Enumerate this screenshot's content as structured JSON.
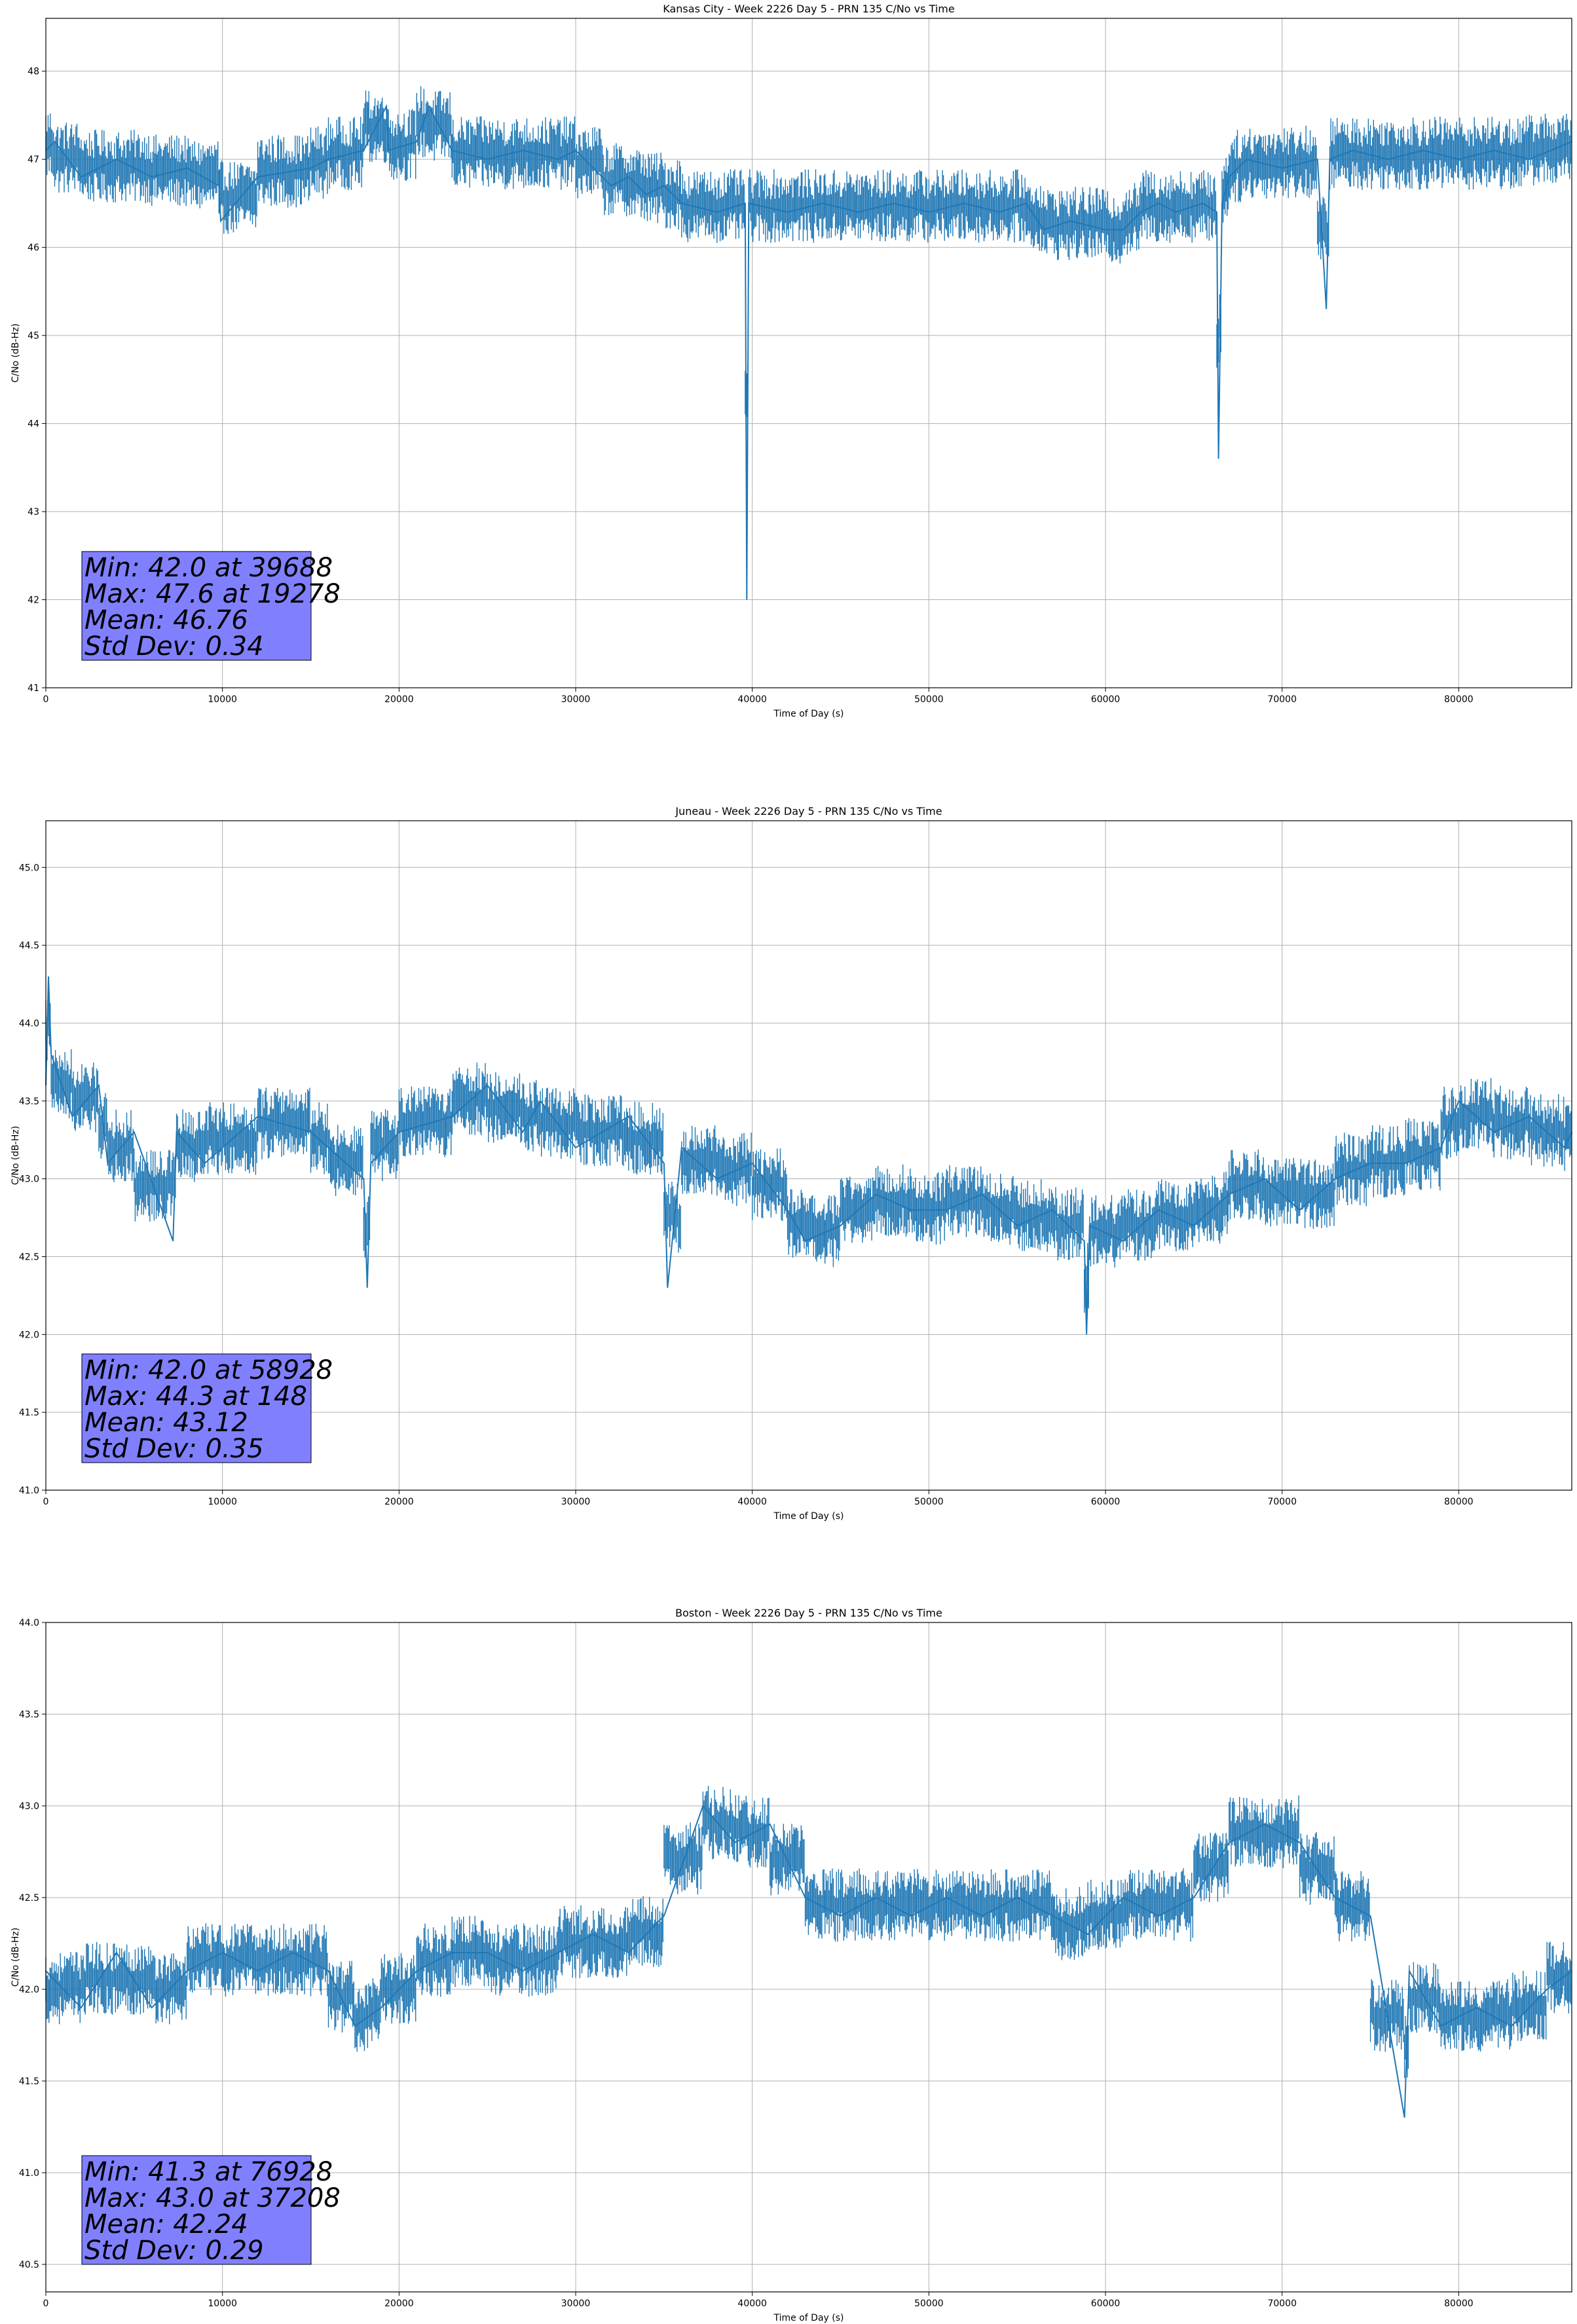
{
  "chart_data": [
    {
      "type": "line",
      "title": "Kansas City - Week 2226 Day 5 - PRN 135 C/No vs Time",
      "xlabel": "Time of Day (s)",
      "ylabel": "C/No (dB-Hz)",
      "xlim": [
        0,
        86400
      ],
      "ylim": [
        41,
        48.6
      ],
      "xticks": [
        0,
        10000,
        20000,
        30000,
        40000,
        50000,
        60000,
        70000,
        80000
      ],
      "yticks": [
        41,
        42,
        43,
        44,
        45,
        46,
        47,
        48
      ],
      "ytick_labels": [
        "41",
        "42",
        "43",
        "44",
        "45",
        "46",
        "47",
        "48"
      ],
      "grid": true,
      "line_color": "#1f77b4",
      "stats_box_color": "#8080ff",
      "stats": [
        "Min: 42.0 at 39688",
        "Max: 47.6 at 19278",
        "Mean: 46.76",
        "Std Dev: 0.34"
      ],
      "x": [
        0,
        500,
        2000,
        4000,
        6000,
        8000,
        9800,
        9900,
        12000,
        15000,
        16000,
        18000,
        19278,
        19400,
        21000,
        21700,
        23000,
        25000,
        27000,
        29000,
        30000,
        31500,
        32000,
        33000,
        34000,
        35000,
        36000,
        38000,
        39600,
        39688,
        39800,
        42000,
        44000,
        46000,
        48000,
        50000,
        52000,
        54000,
        55500,
        56500,
        58000,
        60000,
        61000,
        62000,
        63000,
        64000,
        65500,
        66300,
        66400,
        66600,
        67000,
        68000,
        70000,
        72000,
        72500,
        72700,
        74000,
        76000,
        78000,
        80000,
        82000,
        84000,
        86400
      ],
      "y": [
        47.1,
        47.2,
        46.8,
        47.0,
        46.8,
        46.9,
        46.7,
        46.3,
        46.8,
        46.9,
        47.0,
        47.1,
        47.6,
        47.1,
        47.2,
        47.6,
        47.1,
        47.0,
        47.1,
        47.0,
        47.1,
        46.8,
        46.7,
        46.8,
        46.6,
        46.7,
        46.5,
        46.4,
        46.5,
        42.0,
        46.5,
        46.4,
        46.5,
        46.4,
        46.5,
        46.4,
        46.5,
        46.4,
        46.5,
        46.2,
        46.3,
        46.2,
        46.2,
        46.4,
        46.5,
        46.4,
        46.5,
        46.4,
        43.6,
        46.5,
        46.8,
        47.0,
        46.9,
        47.0,
        45.3,
        47.0,
        47.1,
        47.0,
        47.1,
        47.0,
        47.1,
        47.0,
        47.2
      ]
    },
    {
      "type": "line",
      "title": "Juneau - Week 2226 Day 5 - PRN 135 C/No vs Time",
      "xlabel": "Time of Day (s)",
      "ylabel": "C/No (dB-Hz)",
      "xlim": [
        0,
        86400
      ],
      "ylim": [
        41,
        45.3
      ],
      "xticks": [
        0,
        10000,
        20000,
        30000,
        40000,
        50000,
        60000,
        70000,
        80000
      ],
      "yticks": [
        41.0,
        41.5,
        42.0,
        42.5,
        43.0,
        43.5,
        44.0,
        44.5,
        45.0
      ],
      "ytick_labels": [
        "41.0",
        "41.5",
        "42.0",
        "42.5",
        "43.0",
        "43.5",
        "44.0",
        "44.5",
        "45.0"
      ],
      "grid": true,
      "line_color": "#1f77b4",
      "stats_box_color": "#8080ff",
      "stats": [
        "Min: 42.0 at 58928",
        "Max: 44.3 at 148",
        "Mean: 43.12",
        "Std Dev: 0.35"
      ],
      "x": [
        0,
        148,
        300,
        1500,
        3000,
        3500,
        5000,
        7200,
        7400,
        9000,
        12000,
        15000,
        16000,
        18000,
        18200,
        18400,
        20000,
        23000,
        25000,
        27000,
        28000,
        30000,
        33000,
        35000,
        35200,
        36000,
        38000,
        40000,
        42000,
        43000,
        45000,
        47000,
        49000,
        51000,
        53000,
        55000,
        57000,
        58800,
        58928,
        59100,
        61000,
        63000,
        65000,
        67000,
        69000,
        71000,
        73000,
        75000,
        77000,
        79000,
        80000,
        82000,
        84000,
        86000,
        86400
      ],
      "y": [
        43.6,
        44.3,
        43.8,
        43.4,
        43.6,
        43.1,
        43.3,
        42.6,
        43.3,
        43.1,
        43.4,
        43.3,
        43.2,
        43.0,
        42.3,
        43.1,
        43.3,
        43.4,
        43.6,
        43.3,
        43.5,
        43.2,
        43.4,
        43.1,
        42.3,
        43.2,
        43.0,
        43.1,
        42.8,
        42.6,
        42.7,
        42.9,
        42.8,
        42.8,
        42.9,
        42.7,
        42.8,
        42.6,
        42.0,
        42.7,
        42.6,
        42.8,
        42.7,
        42.9,
        43.0,
        42.8,
        43.0,
        43.1,
        43.1,
        43.2,
        43.5,
        43.3,
        43.4,
        43.2,
        43.3
      ]
    },
    {
      "type": "line",
      "title": "Boston - Week 2226 Day 5 - PRN 135 C/No vs Time",
      "xlabel": "Time of Day (s)",
      "ylabel": "C/No (dB-Hz)",
      "xlim": [
        0,
        86400
      ],
      "ylim": [
        40.35,
        44.0
      ],
      "xticks": [
        0,
        10000,
        20000,
        30000,
        40000,
        50000,
        60000,
        70000,
        80000
      ],
      "yticks": [
        40.5,
        41.0,
        41.5,
        42.0,
        42.5,
        43.0,
        43.5,
        44.0
      ],
      "ytick_labels": [
        "40.5",
        "41.0",
        "41.5",
        "42.0",
        "42.5",
        "43.0",
        "43.5",
        "44.0"
      ],
      "grid": true,
      "line_color": "#1f77b4",
      "stats_box_color": "#8080ff",
      "stats": [
        "Min: 41.3 at 76928",
        "Max: 43.0 at 37208",
        "Mean: 42.24",
        "Std Dev: 0.29"
      ],
      "x": [
        0,
        2000,
        4000,
        6000,
        8000,
        10000,
        12000,
        14000,
        16000,
        17500,
        19000,
        21000,
        23000,
        25000,
        27000,
        29000,
        31000,
        33000,
        35000,
        37208,
        39000,
        41000,
        43000,
        45000,
        47000,
        49000,
        51000,
        53000,
        55000,
        57000,
        59000,
        61000,
        63000,
        65000,
        67000,
        69000,
        71000,
        73000,
        75000,
        76928,
        77200,
        79000,
        81000,
        83000,
        85000,
        86400
      ],
      "y": [
        42.1,
        41.9,
        42.2,
        41.9,
        42.1,
        42.2,
        42.1,
        42.2,
        42.1,
        41.8,
        41.9,
        42.1,
        42.2,
        42.2,
        42.1,
        42.2,
        42.3,
        42.2,
        42.4,
        43.0,
        42.8,
        42.9,
        42.5,
        42.4,
        42.5,
        42.4,
        42.5,
        42.4,
        42.5,
        42.4,
        42.3,
        42.5,
        42.4,
        42.5,
        42.8,
        42.9,
        42.8,
        42.5,
        42.4,
        41.3,
        42.1,
        41.8,
        41.9,
        41.8,
        42.0,
        42.1
      ]
    }
  ]
}
